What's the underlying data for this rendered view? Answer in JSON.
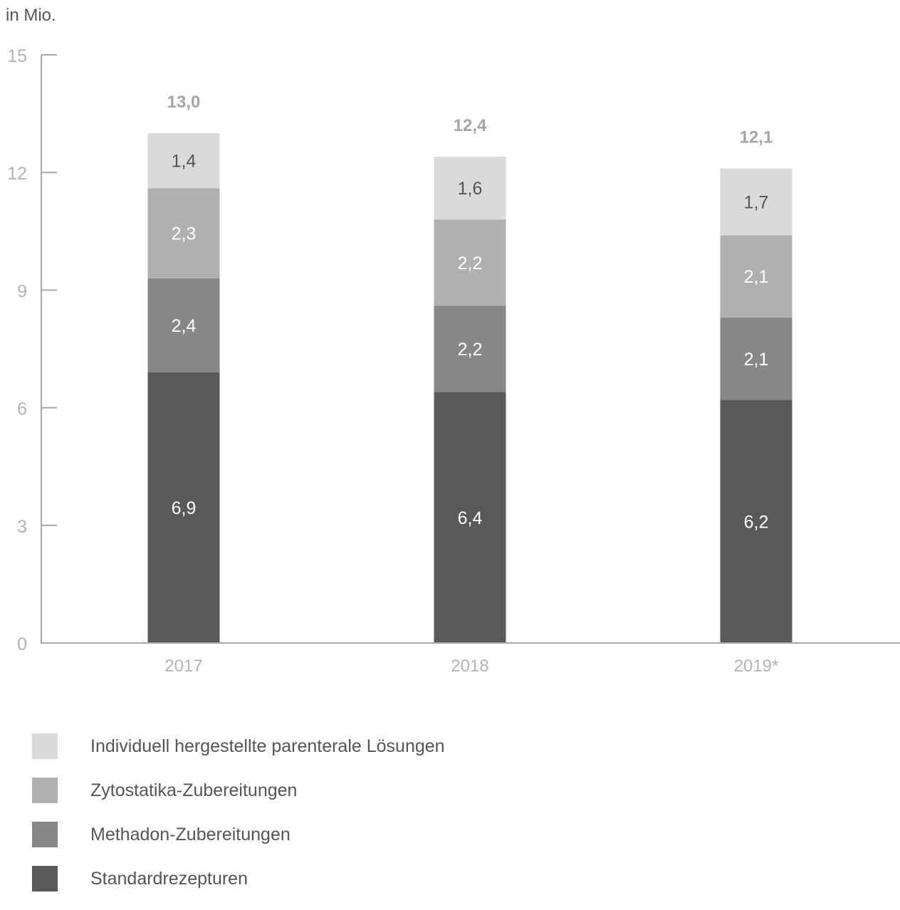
{
  "chart_data": {
    "type": "bar",
    "stacked": true,
    "unit_label": "in Mio.",
    "categories": [
      "2017",
      "2018",
      "2019*"
    ],
    "series": [
      {
        "name": "Standardrezepturen",
        "values": [
          6.9,
          6.4,
          6.2
        ],
        "labels": [
          "6,9",
          "6,4",
          "6,2"
        ],
        "color": "#595957",
        "label_color": "#ffffff"
      },
      {
        "name": "Methadon-Zubereitungen",
        "values": [
          2.4,
          2.2,
          2.1
        ],
        "labels": [
          "2,4",
          "2,2",
          "2,1"
        ],
        "color": "#878787",
        "label_color": "#ffffff"
      },
      {
        "name": "Zytostatika-Zubereitungen",
        "values": [
          2.3,
          2.2,
          2.1
        ],
        "labels": [
          "2,3",
          "2,2",
          "2,1"
        ],
        "color": "#b0b0b0",
        "label_color": "#ffffff"
      },
      {
        "name": "Individuell hergestellte parenterale Lösungen",
        "values": [
          1.4,
          1.6,
          1.7
        ],
        "labels": [
          "1,4",
          "1,6",
          "1,7"
        ],
        "color": "#dadada",
        "label_color": "#555555"
      }
    ],
    "totals": [
      13.0,
      12.4,
      12.1
    ],
    "total_labels": [
      "13,0",
      "12,4",
      "12,1"
    ],
    "total_label_color": "#a6a6a6",
    "ylim": [
      0,
      15
    ],
    "yticks": [
      0,
      3,
      6,
      9,
      12,
      15
    ],
    "axis_color": "#a6a6a6",
    "tick_label_color": "#b3b3b3",
    "grid": false,
    "legend_position": "bottom-left"
  },
  "legend": {
    "items": [
      {
        "label": "Individuell hergestellte parenterale Lösungen",
        "color": "#dadada"
      },
      {
        "label": "Zytostatika-Zubereitungen",
        "color": "#b0b0b0"
      },
      {
        "label": "Methadon-Zubereitungen",
        "color": "#878787"
      },
      {
        "label": "Standardrezepturen",
        "color": "#595957"
      }
    ]
  }
}
